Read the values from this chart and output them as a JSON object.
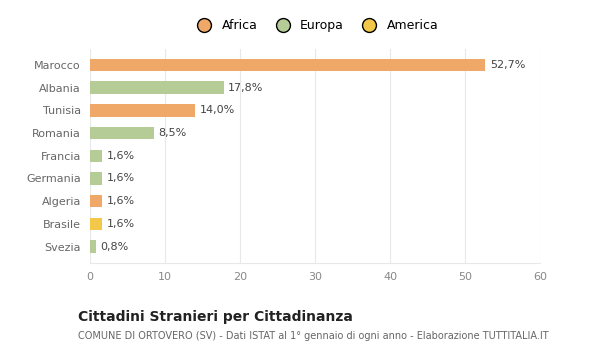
{
  "categories": [
    "Svezia",
    "Brasile",
    "Algeria",
    "Germania",
    "Francia",
    "Romania",
    "Tunisia",
    "Albania",
    "Marocco"
  ],
  "values": [
    0.8,
    1.6,
    1.6,
    1.6,
    1.6,
    8.5,
    14.0,
    17.8,
    52.7
  ],
  "labels": [
    "0,8%",
    "1,6%",
    "1,6%",
    "1,6%",
    "1,6%",
    "8,5%",
    "14,0%",
    "17,8%",
    "52,7%"
  ],
  "colors": [
    "#b5cc96",
    "#f2c84b",
    "#f0a868",
    "#b5cc96",
    "#b5cc96",
    "#b5cc96",
    "#f0a868",
    "#b5cc96",
    "#f0a868"
  ],
  "legend_labels": [
    "Africa",
    "Europa",
    "America"
  ],
  "legend_colors": [
    "#f0a868",
    "#b5cc96",
    "#f2c84b"
  ],
  "title": "Cittadini Stranieri per Cittadinanza",
  "subtitle": "COMUNE DI ORTOVERO (SV) - Dati ISTAT al 1° gennaio di ogni anno - Elaborazione TUTTITALIA.IT",
  "xlim": [
    0,
    60
  ],
  "xticks": [
    0,
    10,
    20,
    30,
    40,
    50,
    60
  ],
  "background_color": "#ffffff",
  "grid_color": "#e8e8e8",
  "bar_height": 0.55,
  "label_fontsize": 8,
  "tick_fontsize": 8,
  "legend_fontsize": 9,
  "title_fontsize": 10,
  "subtitle_fontsize": 7
}
